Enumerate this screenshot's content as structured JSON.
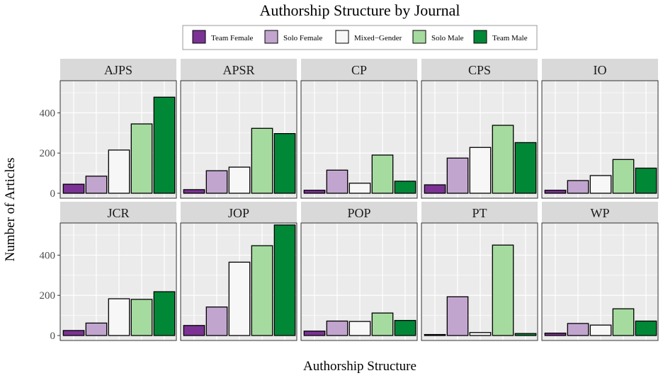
{
  "chart_data": {
    "type": "bar",
    "title": "Authorship Structure by Journal",
    "xlabel": "Authorship Structure",
    "ylabel": "Number of Articles",
    "ylim": [
      0,
      560
    ],
    "yticks": [
      0,
      200,
      400
    ],
    "grid": true,
    "legend_position": "top",
    "categories": [
      "Team Female",
      "Solo Female",
      "Mixed−Gender",
      "Solo Male",
      "Team Male"
    ],
    "colors": [
      "#7b3294",
      "#c2a5cf",
      "#f7f7f7",
      "#a6dba0",
      "#008837"
    ],
    "panels": [
      {
        "name": "AJPS",
        "values": [
          45,
          85,
          215,
          345,
          478
        ]
      },
      {
        "name": "APSR",
        "values": [
          18,
          112,
          130,
          323,
          297
        ]
      },
      {
        "name": "CP",
        "values": [
          15,
          115,
          50,
          190,
          60
        ]
      },
      {
        "name": "CPS",
        "values": [
          42,
          175,
          228,
          338,
          252
        ]
      },
      {
        "name": "IO",
        "values": [
          15,
          63,
          88,
          168,
          125
        ]
      },
      {
        "name": "JCR",
        "values": [
          25,
          62,
          183,
          180,
          218
        ]
      },
      {
        "name": "JOP",
        "values": [
          50,
          142,
          365,
          447,
          550
        ]
      },
      {
        "name": "POP",
        "values": [
          22,
          72,
          70,
          112,
          75
        ]
      },
      {
        "name": "PT",
        "values": [
          5,
          193,
          15,
          450,
          10
        ]
      },
      {
        "name": "WP",
        "values": [
          12,
          60,
          52,
          133,
          72
        ]
      }
    ]
  }
}
